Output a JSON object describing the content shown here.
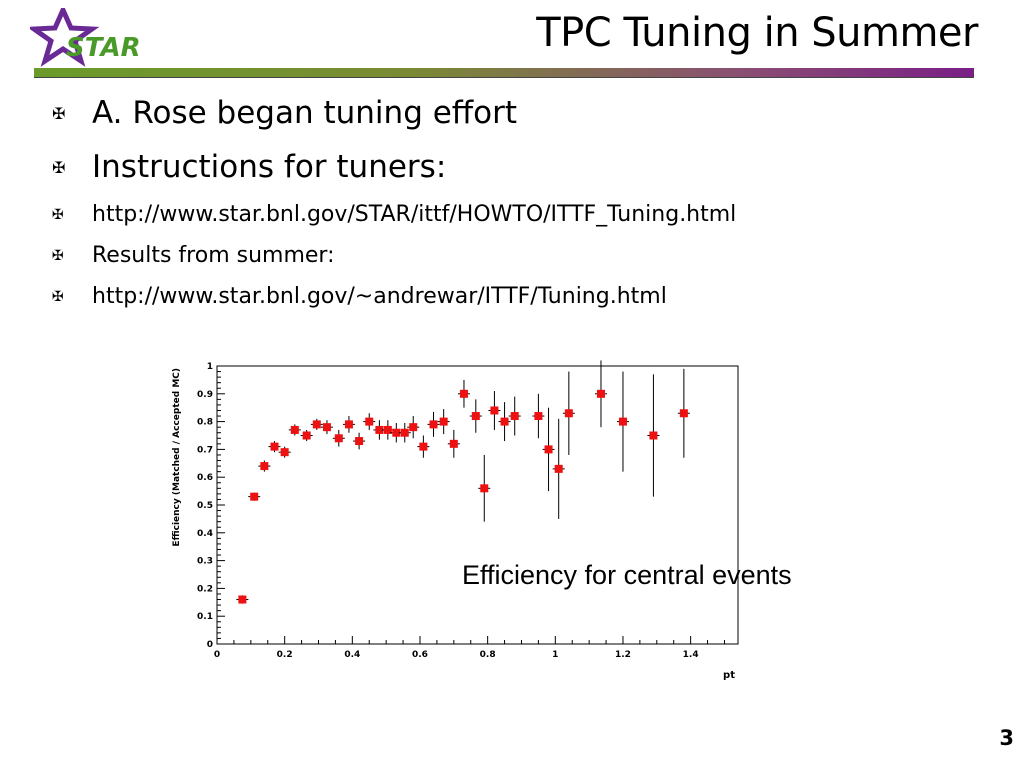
{
  "slide": {
    "title": "TPC Tuning in Summer",
    "logo_text": "STAR",
    "page_number": "3",
    "bullet_icon": "cross-pattee-icon",
    "bullets": [
      {
        "text": "A. Rose began tuning effort"
      },
      {
        "text": "Instructions for tuners:"
      },
      {
        "text": "http://www.star.bnl.gov/STAR/ittf/HOWTO/ITTF_Tuning.html"
      },
      {
        "text": "Results from summer:"
      },
      {
        "text": "http://www.star.bnl.gov/~andrewar/ITTF/Tuning.html"
      }
    ],
    "annotation": "Efficiency for central events",
    "colors": {
      "title_bar_start": "#6b9b2a",
      "title_bar_end": "#7a1f86",
      "marker": "#ee1111",
      "logo_star": "#6a2a96",
      "logo_text": "#4a9a2a"
    }
  },
  "chart_data": {
    "type": "scatter",
    "title": "",
    "xlabel": "pt",
    "ylabel": "Efficiency (Matched / Accepted MC)",
    "xlim": [
      0,
      1.54
    ],
    "ylim": [
      0,
      1
    ],
    "xticks": [
      0,
      0.2,
      0.4,
      0.6,
      0.8,
      1,
      1.2,
      1.4
    ],
    "xtick_labels": [
      "0",
      "0.2",
      "0.4",
      "0.6",
      "0.8",
      "1",
      "1.2",
      "1.4"
    ],
    "yticks": [
      0,
      0.1,
      0.2,
      0.3,
      0.4,
      0.5,
      0.6,
      0.7,
      0.8,
      0.9,
      1
    ],
    "ytick_labels": [
      "0",
      "0.1",
      "0.2",
      "0.3",
      "0.4",
      "0.5",
      "0.6",
      "0.7",
      "0.8",
      "0.9",
      "1"
    ],
    "grid": false,
    "series": [
      {
        "marker": "square",
        "points": [
          {
            "x": 0.075,
            "y": 0.16,
            "err": 0.015
          },
          {
            "x": 0.11,
            "y": 0.53,
            "err": 0.015
          },
          {
            "x": 0.14,
            "y": 0.64,
            "err": 0.02
          },
          {
            "x": 0.17,
            "y": 0.71,
            "err": 0.02
          },
          {
            "x": 0.2,
            "y": 0.69,
            "err": 0.02
          },
          {
            "x": 0.23,
            "y": 0.77,
            "err": 0.02
          },
          {
            "x": 0.265,
            "y": 0.75,
            "err": 0.02
          },
          {
            "x": 0.295,
            "y": 0.79,
            "err": 0.02
          },
          {
            "x": 0.325,
            "y": 0.78,
            "err": 0.025
          },
          {
            "x": 0.36,
            "y": 0.74,
            "err": 0.03
          },
          {
            "x": 0.39,
            "y": 0.79,
            "err": 0.03
          },
          {
            "x": 0.42,
            "y": 0.73,
            "err": 0.03
          },
          {
            "x": 0.45,
            "y": 0.8,
            "err": 0.03
          },
          {
            "x": 0.48,
            "y": 0.77,
            "err": 0.035
          },
          {
            "x": 0.505,
            "y": 0.77,
            "err": 0.035
          },
          {
            "x": 0.53,
            "y": 0.76,
            "err": 0.035
          },
          {
            "x": 0.555,
            "y": 0.76,
            "err": 0.035
          },
          {
            "x": 0.58,
            "y": 0.78,
            "err": 0.04
          },
          {
            "x": 0.61,
            "y": 0.71,
            "err": 0.04
          },
          {
            "x": 0.64,
            "y": 0.79,
            "err": 0.045
          },
          {
            "x": 0.67,
            "y": 0.8,
            "err": 0.045
          },
          {
            "x": 0.7,
            "y": 0.72,
            "err": 0.05
          },
          {
            "x": 0.73,
            "y": 0.9,
            "err": 0.05
          },
          {
            "x": 0.765,
            "y": 0.82,
            "err": 0.06
          },
          {
            "x": 0.79,
            "y": 0.56,
            "err": 0.12
          },
          {
            "x": 0.82,
            "y": 0.84,
            "err": 0.07
          },
          {
            "x": 0.85,
            "y": 0.8,
            "err": 0.07
          },
          {
            "x": 0.88,
            "y": 0.82,
            "err": 0.07
          },
          {
            "x": 0.95,
            "y": 0.82,
            "err": 0.08
          },
          {
            "x": 0.98,
            "y": 0.7,
            "err": 0.15
          },
          {
            "x": 1.01,
            "y": 0.63,
            "err": 0.18
          },
          {
            "x": 1.04,
            "y": 0.83,
            "err": 0.15
          },
          {
            "x": 1.135,
            "y": 0.9,
            "err": 0.12
          },
          {
            "x": 1.2,
            "y": 0.8,
            "err": 0.18
          },
          {
            "x": 1.29,
            "y": 0.75,
            "err": 0.22
          },
          {
            "x": 1.38,
            "y": 0.83,
            "err": 0.16
          }
        ]
      }
    ]
  }
}
